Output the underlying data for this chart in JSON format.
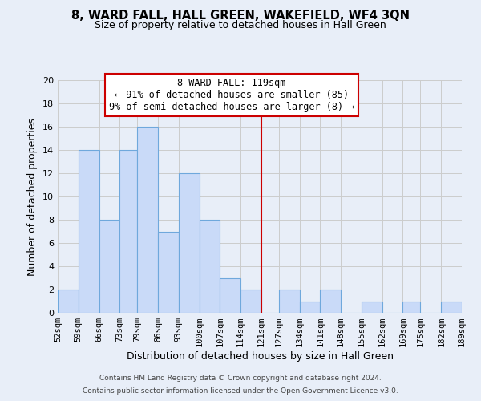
{
  "title": "8, WARD FALL, HALL GREEN, WAKEFIELD, WF4 3QN",
  "subtitle": "Size of property relative to detached houses in Hall Green",
  "xlabel": "Distribution of detached houses by size in Hall Green",
  "ylabel": "Number of detached properties",
  "bar_edges": [
    52,
    59,
    66,
    73,
    79,
    86,
    93,
    100,
    107,
    114,
    121,
    127,
    134,
    141,
    148,
    155,
    162,
    169,
    175,
    182,
    189
  ],
  "bar_heights": [
    2,
    14,
    8,
    14,
    16,
    7,
    12,
    8,
    3,
    2,
    0,
    2,
    1,
    2,
    0,
    1,
    0,
    1,
    0,
    1
  ],
  "bar_color": "#c9daf8",
  "bar_edgecolor": "#6fa8dc",
  "vline_x": 121,
  "vline_color": "#cc0000",
  "ylim": [
    0,
    20
  ],
  "yticks": [
    0,
    2,
    4,
    6,
    8,
    10,
    12,
    14,
    16,
    18,
    20
  ],
  "annotation_title": "8 WARD FALL: 119sqm",
  "annotation_line1": "← 91% of detached houses are smaller (85)",
  "annotation_line2": "9% of semi-detached houses are larger (8) →",
  "annotation_box_color": "#ffffff",
  "annotation_box_edgecolor": "#cc0000",
  "footer_line1": "Contains HM Land Registry data © Crown copyright and database right 2024.",
  "footer_line2": "Contains public sector information licensed under the Open Government Licence v3.0.",
  "grid_color": "#cccccc",
  "background_color": "#e8eef8",
  "tick_labels": [
    "52sqm",
    "59sqm",
    "66sqm",
    "73sqm",
    "79sqm",
    "86sqm",
    "93sqm",
    "100sqm",
    "107sqm",
    "114sqm",
    "121sqm",
    "127sqm",
    "134sqm",
    "141sqm",
    "148sqm",
    "155sqm",
    "162sqm",
    "169sqm",
    "175sqm",
    "182sqm",
    "189sqm"
  ]
}
